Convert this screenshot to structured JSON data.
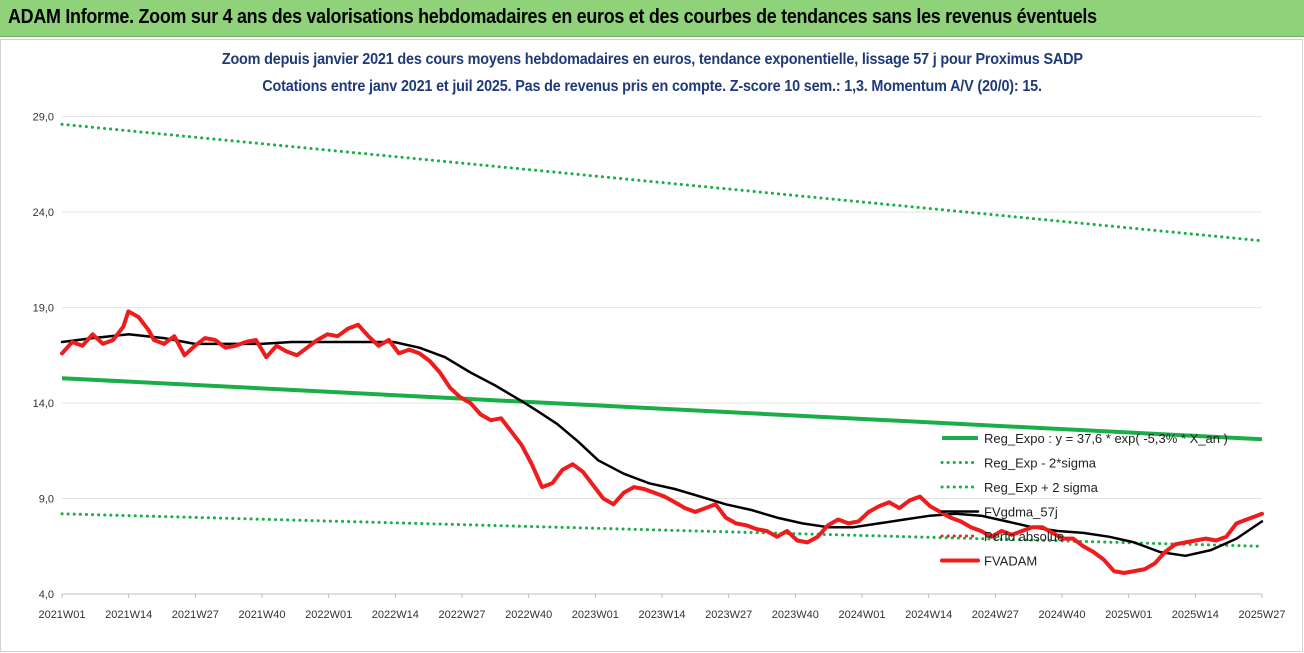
{
  "banner": {
    "title": "ADAM Informe. Zoom sur 4 ans des valorisations hebdomadaires en euros et des courbes de tendances sans les revenus éventuels"
  },
  "colors": {
    "banner_bg": "#8fd27a",
    "title_text": "#1f3a78",
    "reg_expo": "#1aae48",
    "envelope_dotted": "#1aae48",
    "fvgdma": "#000000",
    "perfo_absolue": "#e8251e",
    "fvadam": "#ee1c1c"
  },
  "chart_data": {
    "type": "line",
    "title": "Zoom depuis janvier 2021 des cours moyens hebdomadaires en euros, tendance exponentielle, lissage 57 j pour Proximus SADP",
    "subtitle": "Cotations entre janv 2021 et juil 2025. Pas de revenus pris en compte. Z-score 10 sem.: 1,3. Momentum A/V (20/0): 15.",
    "xlabel": "",
    "ylabel": "",
    "ylim": [
      4.0,
      30.5
    ],
    "y_ticks": [
      "4,0",
      "9,0",
      "14,0",
      "19,0",
      "24,0",
      "29,0"
    ],
    "y_tick_values": [
      4.0,
      9.0,
      14.0,
      19.0,
      24.0,
      29.0
    ],
    "x_range": [
      0,
      235
    ],
    "x_ticks": [
      "2021W01",
      "2021W14",
      "2021W27",
      "2021W40",
      "2022W01",
      "2022W14",
      "2022W27",
      "2022W40",
      "2023W01",
      "2023W14",
      "2023W27",
      "2023W40",
      "2024W01",
      "2024W14",
      "2024W27",
      "2024W40",
      "2025W01",
      "2025W14",
      "2025W27"
    ],
    "grid": "horizontal",
    "legend_position": "right",
    "series": [
      {
        "name": "Reg_Expo : y = 37,6 * exp( -5,3% *  X_an )",
        "style": "solid-thick",
        "x": [
          0,
          235
        ],
        "values": [
          15.3,
          12.1
        ]
      },
      {
        "name": "Reg_Exp - 2*sigma",
        "style": "dotted",
        "x": [
          0,
          235
        ],
        "values": [
          8.2,
          6.5
        ]
      },
      {
        "name": "Reg_Exp + 2 sigma",
        "style": "dotted",
        "x": [
          0,
          235
        ],
        "values": [
          28.6,
          22.5
        ]
      },
      {
        "name": "FVgdma_57j",
        "style": "solid",
        "x": [
          0,
          6,
          13,
          20,
          26,
          32,
          39,
          45,
          52,
          58,
          65,
          70,
          75,
          80,
          85,
          90,
          93,
          97,
          101,
          105,
          110,
          115,
          120,
          125,
          130,
          135,
          140,
          145,
          150,
          155,
          160,
          165,
          170,
          175,
          180,
          185,
          190,
          195,
          200,
          205,
          210,
          215,
          220,
          225,
          230,
          235
        ],
        "values": [
          17.2,
          17.4,
          17.6,
          17.4,
          17.1,
          17.1,
          17.1,
          17.2,
          17.2,
          17.2,
          17.2,
          16.9,
          16.4,
          15.6,
          14.9,
          14.1,
          13.6,
          12.9,
          12.0,
          11.0,
          10.3,
          9.8,
          9.5,
          9.1,
          8.7,
          8.4,
          8.0,
          7.7,
          7.5,
          7.5,
          7.7,
          7.9,
          8.1,
          8.2,
          8.1,
          7.8,
          7.5,
          7.3,
          7.2,
          7.0,
          6.7,
          6.2,
          6.0,
          6.3,
          6.9,
          7.8
        ]
      },
      {
        "name": "Perfo absolue",
        "style": "dotted",
        "x": [],
        "values": []
      },
      {
        "name": "FVADAM",
        "style": "solid-thick",
        "x": [
          0,
          2,
          4,
          6,
          8,
          10,
          12,
          13,
          15,
          17,
          18,
          20,
          22,
          24,
          26,
          28,
          30,
          32,
          34,
          36,
          38,
          40,
          42,
          44,
          46,
          48,
          50,
          52,
          54,
          56,
          58,
          60,
          62,
          64,
          66,
          68,
          70,
          72,
          74,
          76,
          78,
          80,
          82,
          84,
          86,
          88,
          90,
          92,
          94,
          96,
          98,
          100,
          102,
          104,
          106,
          108,
          110,
          112,
          114,
          116,
          118,
          120,
          122,
          124,
          126,
          128,
          130,
          132,
          134,
          136,
          138,
          140,
          142,
          144,
          146,
          148,
          150,
          152,
          154,
          156,
          158,
          160,
          162,
          164,
          166,
          168,
          170,
          172,
          174,
          176,
          178,
          180,
          182,
          184,
          186,
          188,
          190,
          192,
          194,
          196,
          198,
          200,
          202,
          204,
          206,
          208,
          210,
          212,
          214,
          216,
          218,
          220,
          222,
          224,
          226,
          228,
          230,
          232,
          234,
          235
        ],
        "values": [
          16.6,
          17.2,
          17.0,
          17.6,
          17.1,
          17.3,
          18.0,
          18.8,
          18.5,
          17.8,
          17.3,
          17.1,
          17.5,
          16.5,
          17.0,
          17.4,
          17.3,
          16.9,
          17.0,
          17.2,
          17.3,
          16.4,
          17.0,
          16.7,
          16.5,
          16.9,
          17.3,
          17.6,
          17.5,
          17.9,
          18.1,
          17.5,
          17.0,
          17.3,
          16.6,
          16.8,
          16.6,
          16.2,
          15.6,
          14.8,
          14.3,
          14.0,
          13.4,
          13.1,
          13.2,
          12.5,
          11.8,
          10.8,
          9.6,
          9.8,
          10.5,
          10.8,
          10.4,
          9.7,
          9.0,
          8.7,
          9.3,
          9.6,
          9.5,
          9.3,
          9.1,
          8.8,
          8.5,
          8.3,
          8.5,
          8.7,
          8.0,
          7.7,
          7.6,
          7.4,
          7.3,
          7.0,
          7.3,
          6.8,
          6.7,
          7.0,
          7.6,
          7.9,
          7.7,
          7.8,
          8.3,
          8.6,
          8.8,
          8.5,
          8.9,
          9.1,
          8.6,
          8.3,
          8.0,
          7.8,
          7.5,
          7.3,
          7.0,
          7.3,
          7.1,
          7.3,
          7.5,
          7.5,
          7.2,
          6.9,
          6.9,
          6.5,
          6.2,
          5.8,
          5.2,
          5.1,
          5.2,
          5.3,
          5.6,
          6.2,
          6.6,
          6.7,
          6.8,
          6.9,
          6.8,
          7.0,
          7.7,
          7.9,
          8.1,
          8.2
        ]
      }
    ]
  }
}
